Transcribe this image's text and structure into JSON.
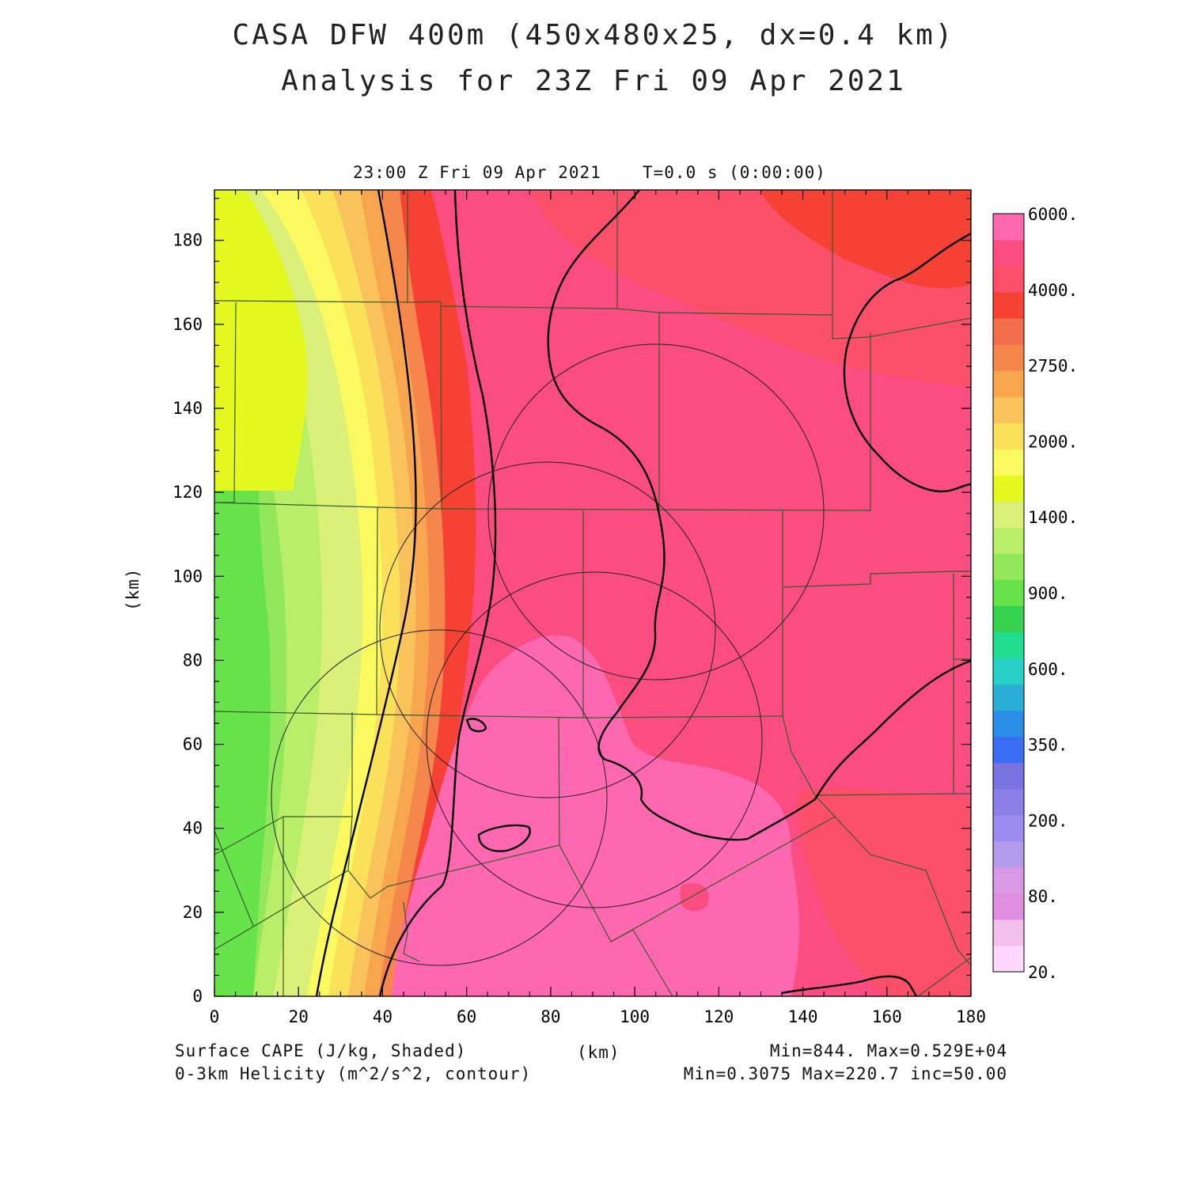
{
  "title_line1": "CASA DFW 400m (450x480x25, dx=0.4 km)",
  "title_line2": "Analysis for 23Z Fri 09 Apr 2021",
  "valid_time": "23:00 Z Fri 09 Apr 2021",
  "time_step": "T=0.0 s (0:00:00)",
  "y_unit": "(km)",
  "x_unit": "(km)",
  "field1_label": "Surface CAPE (J/kg, Shaded)",
  "field2_label": "0-3km Helicity (m^2/s^2, contour)",
  "field1_stats": "Min=844. Max=0.529E+04",
  "field2_stats": "Min=0.3075 Max=220.7 inc=50.00",
  "x_ticks": [
    "0",
    "20",
    "40",
    "60",
    "80",
    "100",
    "120",
    "140",
    "160",
    "180"
  ],
  "y_ticks": [
    "0",
    "20",
    "40",
    "60",
    "80",
    "100",
    "120",
    "140",
    "160",
    "180"
  ],
  "colorbar": {
    "colors_bottom_to_top": [
      "#ffd8ff",
      "#f3c0ee",
      "#e08ee0",
      "#d898e4",
      "#b49aeb",
      "#9b8bf0",
      "#8c7fe8",
      "#7a74e0",
      "#3a6ff5",
      "#2a8de6",
      "#2aaed6",
      "#28d1c8",
      "#20dc8e",
      "#36d250",
      "#66e34a",
      "#92e85a",
      "#b8ee68",
      "#dbf078",
      "#e3f920",
      "#fafa60",
      "#fbe05a",
      "#f9c25a",
      "#f7a64e",
      "#f5864c",
      "#f36e4c",
      "#f64235",
      "#fb4f6a",
      "#fb4d82",
      "#fd68b0"
    ],
    "labels": [
      "20.",
      "80.",
      "200.",
      "350.",
      "600.",
      "900.",
      "1400.",
      "2000.",
      "2750.",
      "4000.",
      "6000."
    ]
  },
  "chart_data": {
    "type": "heatmap",
    "title": "CASA DFW 400m (450x480x25, dx=0.4 km)",
    "subtitle": "Analysis for 23Z Fri 09 Apr 2021",
    "xlabel": "(km)",
    "ylabel": "(km)",
    "xlim": [
      0,
      180
    ],
    "ylim": [
      0,
      192
    ],
    "shaded_field": "Surface CAPE (J/kg, Shaded)",
    "shaded_min": 844,
    "shaded_max": 5290,
    "contour_field": "0-3km Helicity (m^2/s^2, contour)",
    "contour_min": 0.3075,
    "contour_max": 220.7,
    "contour_interval": 50.0,
    "radar_rings": [
      {
        "center_km": [
          54,
          49
        ],
        "radius_km": 40
      },
      {
        "center_km": [
          79,
          88
        ],
        "radius_km": 40
      },
      {
        "center_km": [
          91,
          60
        ],
        "radius_km": 40
      },
      {
        "center_km": [
          105,
          117
        ],
        "radius_km": 40
      }
    ]
  }
}
